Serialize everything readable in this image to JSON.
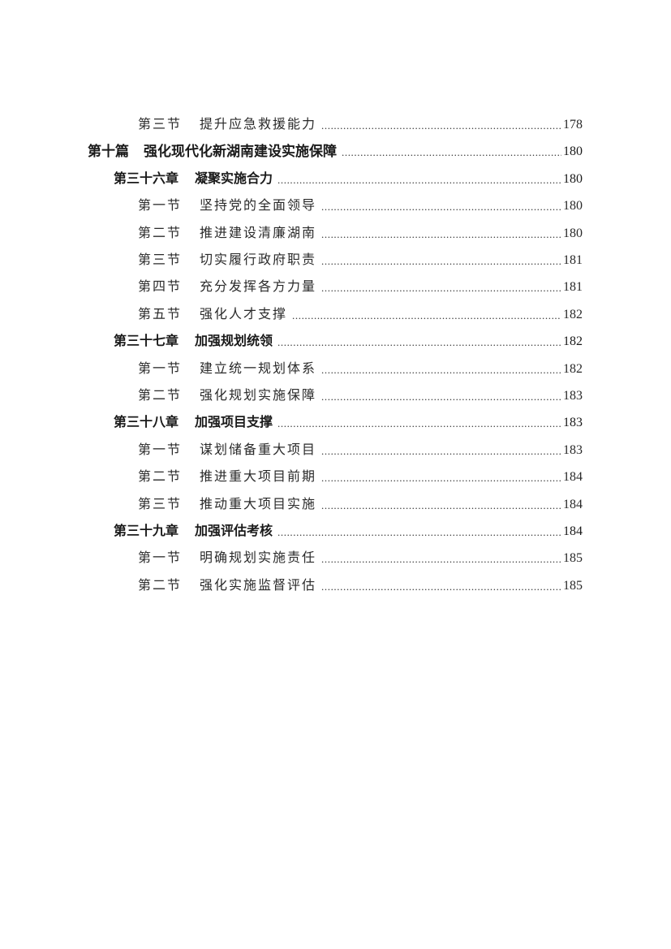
{
  "toc": {
    "entries": [
      {
        "level": "section",
        "number": "第三节",
        "title": "提升应急救援能力",
        "page": "178"
      },
      {
        "level": "part",
        "number": "第十篇",
        "title": "强化现代化新湖南建设实施保障",
        "page": "180"
      },
      {
        "level": "chapter",
        "number": "第三十六章",
        "title": "凝聚实施合力",
        "page": "180"
      },
      {
        "level": "section",
        "number": "第一节",
        "title": "坚持党的全面领导",
        "page": "180"
      },
      {
        "level": "section",
        "number": "第二节",
        "title": "推进建设清廉湖南",
        "page": "180"
      },
      {
        "level": "section",
        "number": "第三节",
        "title": "切实履行政府职责",
        "page": "181"
      },
      {
        "level": "section",
        "number": "第四节",
        "title": "充分发挥各方力量",
        "page": "181"
      },
      {
        "level": "section",
        "number": "第五节",
        "title": "强化人才支撑",
        "page": "182"
      },
      {
        "level": "chapter",
        "number": "第三十七章",
        "title": "加强规划统领",
        "page": "182"
      },
      {
        "level": "section",
        "number": "第一节",
        "title": "建立统一规划体系",
        "page": "182"
      },
      {
        "level": "section",
        "number": "第二节",
        "title": "强化规划实施保障",
        "page": "183"
      },
      {
        "level": "chapter",
        "number": "第三十八章",
        "title": "加强项目支撑",
        "page": "183"
      },
      {
        "level": "section",
        "number": "第一节",
        "title": "谋划储备重大项目",
        "page": "183"
      },
      {
        "level": "section",
        "number": "第二节",
        "title": "推进重大项目前期",
        "page": "184"
      },
      {
        "level": "section",
        "number": "第三节",
        "title": "推动重大项目实施",
        "page": "184"
      },
      {
        "level": "chapter",
        "number": "第三十九章",
        "title": "加强评估考核",
        "page": "184"
      },
      {
        "level": "section",
        "number": "第一节",
        "title": "明确规划实施责任",
        "page": "185"
      },
      {
        "level": "section",
        "number": "第二节",
        "title": "强化实施监督评估",
        "page": "185"
      }
    ]
  }
}
